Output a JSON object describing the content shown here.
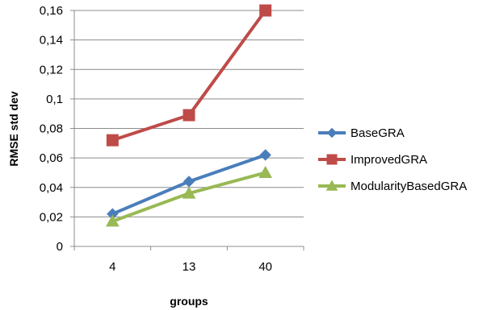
{
  "chart_data": {
    "type": "line",
    "categories": [
      "4",
      "13",
      "40"
    ],
    "series": [
      {
        "name": "BaseGRA",
        "values": [
          0.022,
          0.044,
          0.062
        ],
        "color": "#4a7ebb",
        "marker": "diamond"
      },
      {
        "name": "ImprovedGRA",
        "values": [
          0.072,
          0.089,
          0.16
        ],
        "color": "#be4b48",
        "marker": "square"
      },
      {
        "name": "ModularityBasedGRA",
        "values": [
          0.017,
          0.036,
          0.05
        ],
        "color": "#98b954",
        "marker": "triangle"
      }
    ],
    "xlabel": "groups",
    "ylabel": "RMSE std dev",
    "ylim": [
      0,
      0.16
    ],
    "yticks": [
      0,
      0.02,
      0.04,
      0.06,
      0.08,
      0.1,
      0.12,
      0.14,
      0.16
    ],
    "ytick_labels": [
      "0",
      "0,02",
      "0,04",
      "0,06",
      "0,08",
      "0,1",
      "0,12",
      "0,14",
      "0,16"
    ],
    "grid": "horizontal",
    "legend_position": "right"
  }
}
